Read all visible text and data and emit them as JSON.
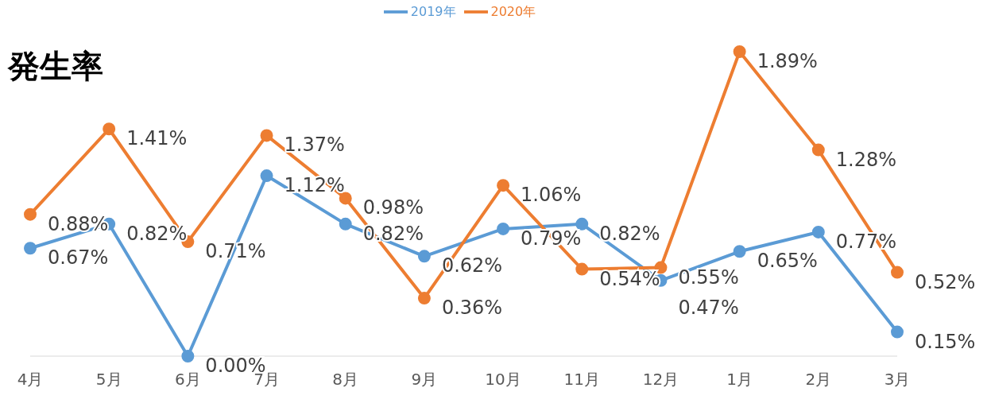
{
  "chart_data": {
    "type": "line",
    "title": "発生率",
    "categories": [
      "4月",
      "5月",
      "6月",
      "7月",
      "8月",
      "9月",
      "10月",
      "11月",
      "12月",
      "1月",
      "2月",
      "3月"
    ],
    "series": [
      {
        "name": "2019年",
        "color": "#5b9bd5",
        "values": [
          0.67,
          0.82,
          0.0,
          1.12,
          0.82,
          0.62,
          0.79,
          0.82,
          0.47,
          0.65,
          0.77,
          0.15
        ],
        "value_labels": [
          "0.67%",
          "0.82%",
          "0.00%",
          "1.12%",
          "0.82%",
          "0.62%",
          "0.79%",
          "0.82%",
          "0.47%",
          "0.65%",
          "0.77%",
          "0.15%"
        ]
      },
      {
        "name": "2020年",
        "color": "#ed7d31",
        "values": [
          0.88,
          1.41,
          0.71,
          1.37,
          0.98,
          0.36,
          1.06,
          0.54,
          0.55,
          1.89,
          1.28,
          0.52
        ],
        "value_labels": [
          "0.88%",
          "1.41%",
          "0.71%",
          "1.37%",
          "0.98%",
          "0.36%",
          "1.06%",
          "0.54%",
          "0.55%",
          "1.89%",
          "1.28%",
          "0.52%"
        ]
      }
    ],
    "legend": "top",
    "marker": "circle",
    "grid": false
  }
}
